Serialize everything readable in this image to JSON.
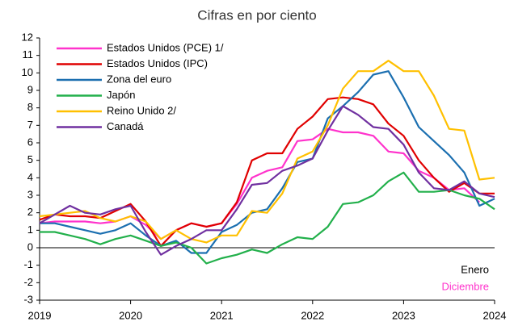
{
  "chart_data": {
    "type": "line",
    "subtitle": "Cifras en por ciento",
    "x": [
      2019,
      2019.167,
      2019.333,
      2019.5,
      2019.667,
      2019.833,
      2020,
      2020.167,
      2020.333,
      2020.5,
      2020.667,
      2020.833,
      2021,
      2021.167,
      2021.333,
      2021.5,
      2021.667,
      2021.833,
      2022,
      2022.167,
      2022.333,
      2022.5,
      2022.667,
      2022.833,
      2023,
      2023.167,
      2023.333,
      2023.5,
      2023.667,
      2023.833,
      2024
    ],
    "xlim": [
      2019,
      2024
    ],
    "xticks": [
      2019,
      2020,
      2021,
      2022,
      2023,
      2024
    ],
    "ylim": [
      -3,
      12
    ],
    "yticks": [
      -3,
      -2,
      -1,
      0,
      1,
      2,
      3,
      4,
      5,
      6,
      7,
      8,
      9,
      10,
      11,
      12
    ],
    "zero_line": true,
    "legend": "upper left",
    "series": [
      {
        "name": "Estados Unidos (PCE) 1/",
        "color": "#ff33cc",
        "values": [
          1.4,
          1.5,
          1.5,
          1.5,
          1.4,
          1.5,
          1.8,
          1.3,
          0.5,
          1.0,
          1.4,
          1.2,
          1.4,
          2.5,
          4.0,
          4.4,
          4.6,
          6.1,
          6.2,
          6.8,
          6.6,
          6.6,
          6.4,
          5.5,
          5.4,
          4.4,
          4.0,
          3.3,
          3.4,
          2.6,
          null
        ]
      },
      {
        "name": "Estados Unidos (IPC)",
        "color": "#e00000",
        "values": [
          1.6,
          1.9,
          1.8,
          1.8,
          1.7,
          2.1,
          2.5,
          1.5,
          0.1,
          1.0,
          1.4,
          1.2,
          1.4,
          2.6,
          5.0,
          5.4,
          5.4,
          6.8,
          7.5,
          8.5,
          8.6,
          8.5,
          8.2,
          7.1,
          6.4,
          5.0,
          4.0,
          3.2,
          3.7,
          3.1,
          3.1
        ]
      },
      {
        "name": "Zona del euro",
        "color": "#1b6fb0",
        "values": [
          1.4,
          1.4,
          1.2,
          1.0,
          0.8,
          1.0,
          1.4,
          0.7,
          0.1,
          0.4,
          -0.3,
          -0.3,
          0.9,
          1.3,
          2.0,
          2.2,
          3.4,
          4.9,
          5.1,
          7.4,
          8.1,
          8.9,
          9.9,
          10.1,
          8.6,
          6.9,
          6.1,
          5.3,
          4.3,
          2.4,
          2.8
        ]
      },
      {
        "name": "Japón",
        "color": "#22b04b",
        "values": [
          0.9,
          0.9,
          0.7,
          0.5,
          0.2,
          0.5,
          0.7,
          0.4,
          0.1,
          0.3,
          0.0,
          -0.9,
          -0.6,
          -0.4,
          -0.1,
          -0.3,
          0.2,
          0.6,
          0.5,
          1.2,
          2.5,
          2.6,
          3.0,
          3.8,
          4.3,
          3.2,
          3.2,
          3.3,
          3.0,
          2.8,
          2.2
        ]
      },
      {
        "name": "Reino Unido 2/",
        "color": "#ffc000",
        "values": [
          1.8,
          1.9,
          2.0,
          2.1,
          1.7,
          1.5,
          1.8,
          1.5,
          0.5,
          1.0,
          0.5,
          0.3,
          0.7,
          0.7,
          2.1,
          2.0,
          3.1,
          5.1,
          5.5,
          7.0,
          9.1,
          10.1,
          10.1,
          10.7,
          10.1,
          10.1,
          8.7,
          6.8,
          6.7,
          3.9,
          4.0
        ]
      },
      {
        "name": "Canadá",
        "color": "#7030a0",
        "values": [
          1.4,
          1.9,
          2.4,
          2.0,
          1.9,
          2.2,
          2.4,
          0.9,
          -0.4,
          0.1,
          0.5,
          1.0,
          1.0,
          2.2,
          3.6,
          3.7,
          4.4,
          4.7,
          5.1,
          6.7,
          8.1,
          7.6,
          6.9,
          6.8,
          5.9,
          4.3,
          3.4,
          3.3,
          3.8,
          3.1,
          2.9
        ]
      }
    ],
    "annotations": [
      {
        "text": "Enero",
        "color": "#000000"
      },
      {
        "text": "Diciembre",
        "color": "#ff33cc"
      }
    ]
  }
}
